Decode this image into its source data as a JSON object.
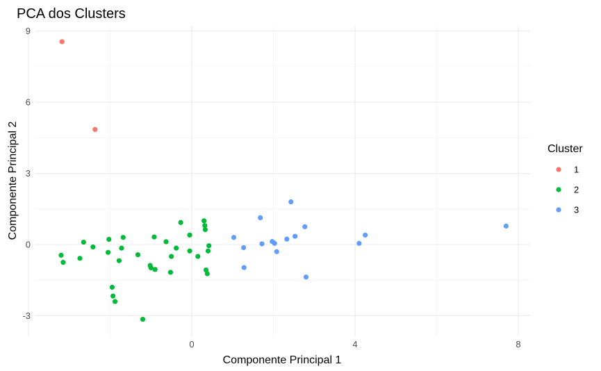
{
  "chart_data": {
    "type": "scatter",
    "title": "PCA dos Clusters",
    "xlabel": "Componente Principal 1",
    "ylabel": "Componente Principal 2",
    "xlim": [
      -4.9,
      8.3
    ],
    "ylim": [
      -3.8,
      9.3
    ],
    "x_ticks": [
      0,
      4,
      8
    ],
    "x_tick_labels": [
      "0",
      "4",
      "8"
    ],
    "y_ticks": [
      -3,
      0,
      3,
      6,
      9
    ],
    "y_tick_labels": [
      "-3",
      "0",
      "3",
      "6",
      "9"
    ],
    "grid": true,
    "legend": {
      "title": "Cluster",
      "position": "right"
    },
    "series": [
      {
        "name": "1",
        "color": "#F8766D",
        "points": [
          [
            -3.18,
            8.55
          ],
          [
            -2.37,
            4.85
          ]
        ]
      },
      {
        "name": "2",
        "color": "#00BA38",
        "points": [
          [
            -3.2,
            -0.45
          ],
          [
            -3.15,
            -0.75
          ],
          [
            -2.74,
            -0.58
          ],
          [
            -2.65,
            0.1
          ],
          [
            -2.42,
            -0.1
          ],
          [
            -2.03,
            0.22
          ],
          [
            -2.05,
            -0.33
          ],
          [
            -1.95,
            -1.8
          ],
          [
            -1.93,
            -2.17
          ],
          [
            -1.88,
            -2.4
          ],
          [
            -1.78,
            -0.68
          ],
          [
            -1.72,
            -0.15
          ],
          [
            -1.68,
            0.3
          ],
          [
            -1.32,
            -0.43
          ],
          [
            -1.2,
            -3.15
          ],
          [
            -1.02,
            -0.88
          ],
          [
            -1.0,
            -0.98
          ],
          [
            -0.9,
            -1.05
          ],
          [
            -0.92,
            0.32
          ],
          [
            -0.63,
            0.12
          ],
          [
            -0.52,
            -1.17
          ],
          [
            -0.5,
            -0.5
          ],
          [
            -0.38,
            -0.15
          ],
          [
            -0.27,
            0.93
          ],
          [
            -0.05,
            0.4
          ],
          [
            -0.05,
            -0.27
          ],
          [
            0.15,
            -0.5
          ],
          [
            0.3,
            1.0
          ],
          [
            0.32,
            0.8
          ],
          [
            0.33,
            0.63
          ],
          [
            0.35,
            -1.07
          ],
          [
            0.38,
            -1.23
          ],
          [
            0.4,
            -0.27
          ],
          [
            0.42,
            -0.05
          ]
        ]
      },
      {
        "name": "3",
        "color": "#619CFF",
        "points": [
          [
            1.03,
            0.3
          ],
          [
            1.27,
            -0.13
          ],
          [
            1.28,
            -0.97
          ],
          [
            1.68,
            1.13
          ],
          [
            1.72,
            0.03
          ],
          [
            1.97,
            0.13
          ],
          [
            2.03,
            0.05
          ],
          [
            2.08,
            -0.3
          ],
          [
            2.33,
            0.23
          ],
          [
            2.43,
            1.8
          ],
          [
            2.53,
            0.35
          ],
          [
            2.77,
            0.75
          ],
          [
            2.8,
            -1.37
          ],
          [
            4.1,
            0.05
          ],
          [
            4.25,
            0.4
          ],
          [
            7.7,
            0.78
          ]
        ]
      }
    ]
  }
}
